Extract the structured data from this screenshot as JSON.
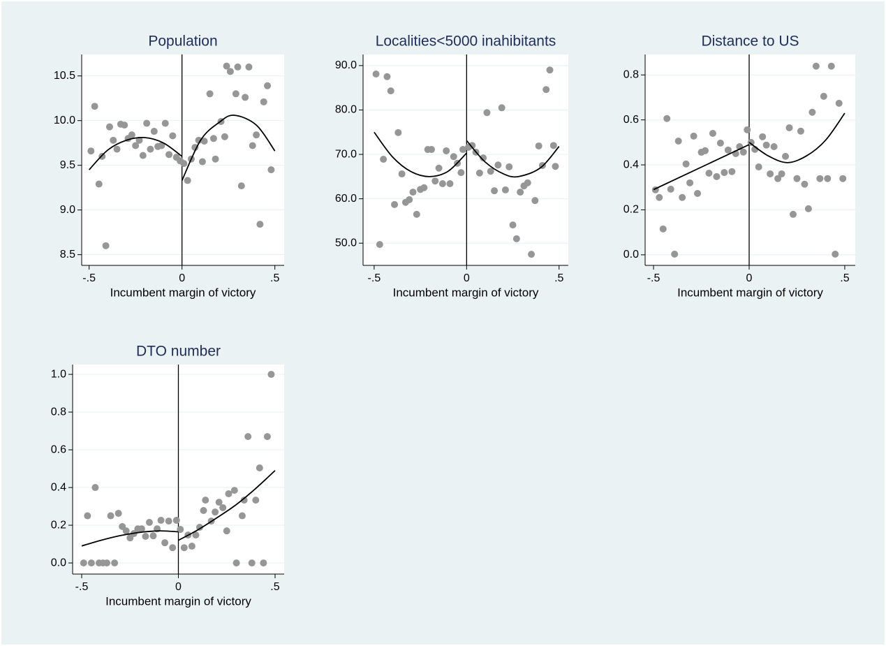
{
  "chart_data": [
    {
      "type": "scatter",
      "title": "Population",
      "xlabel": "Incumbent margin of victory",
      "xlim": [
        -0.54,
        0.55
      ],
      "ylim": [
        8.38,
        10.74
      ],
      "xticks": [
        {
          "value": -0.5,
          "label": "-.5"
        },
        0,
        {
          "value": 0.5,
          "label": ".5"
        }
      ],
      "yticks": [
        8.5,
        {
          "value": 9,
          "label": "9.0"
        },
        9.5,
        {
          "value": 10,
          "label": "10.0"
        },
        10.5
      ],
      "grid": true,
      "xline": 0,
      "points": {
        "color": "#969696",
        "x": [
          -0.49,
          -0.47,
          -0.447,
          -0.43,
          -0.41,
          -0.39,
          -0.37,
          -0.35,
          -0.33,
          -0.31,
          -0.29,
          -0.27,
          -0.25,
          -0.23,
          -0.21,
          -0.19,
          -0.17,
          -0.15,
          -0.13,
          -0.11,
          -0.09,
          -0.07,
          -0.05,
          -0.03,
          -0.01,
          0.01,
          0.03,
          0.05,
          0.07,
          0.09,
          0.11,
          0.12,
          0.15,
          0.17,
          0.18,
          0.21,
          0.23,
          0.24,
          0.26,
          0.29,
          0.3,
          0.32,
          0.34,
          0.36,
          0.38,
          0.4,
          0.42,
          0.44,
          0.46,
          0.48
        ],
        "y": [
          9.66,
          10.16,
          9.29,
          9.6,
          8.6,
          9.93,
          9.78,
          9.68,
          9.96,
          9.95,
          9.8,
          9.84,
          9.72,
          9.78,
          9.61,
          9.97,
          9.68,
          9.88,
          9.71,
          9.72,
          9.97,
          9.62,
          9.83,
          9.59,
          9.55,
          9.52,
          9.33,
          9.57,
          9.7,
          9.78,
          9.54,
          9.77,
          10.3,
          9.8,
          9.57,
          9.99,
          9.82,
          10.61,
          10.55,
          10.3,
          10.6,
          9.27,
          10.26,
          10.6,
          9.72,
          9.84,
          8.84,
          10.21,
          10.39,
          9.45
        ]
      },
      "fits": [
        {
          "color": "#000000",
          "x": [
            -0.5,
            -0.4,
            -0.3,
            -0.2,
            -0.1,
            0
          ],
          "y": [
            9.45,
            9.67,
            9.78,
            9.81,
            9.75,
            9.6
          ]
        },
        {
          "color": "#000000",
          "x": [
            0,
            0.1,
            0.2,
            0.28,
            0.4,
            0.5
          ],
          "y": [
            9.33,
            9.78,
            9.98,
            10.06,
            9.95,
            9.66
          ]
        }
      ]
    },
    {
      "type": "scatter",
      "title": "Localities<5000 inahibitants",
      "xlabel": "Incumbent margin of victory",
      "xlim": [
        -0.56,
        0.55
      ],
      "ylim": [
        45,
        92.5
      ],
      "xticks": [
        {
          "value": -0.5,
          "label": "-.5"
        },
        0,
        {
          "value": 0.5,
          "label": ".5"
        }
      ],
      "yticks": [
        {
          "value": 50,
          "label": "50.0"
        },
        {
          "value": 60,
          "label": "60.0"
        },
        {
          "value": 70,
          "label": "70.0"
        },
        {
          "value": 80,
          "label": "80.0"
        },
        {
          "value": 90,
          "label": "90.0"
        }
      ],
      "grid": true,
      "xline": 0,
      "points": {
        "color": "#969696",
        "x": [
          -0.49,
          -0.47,
          -0.45,
          -0.43,
          -0.41,
          -0.39,
          -0.37,
          -0.35,
          -0.33,
          -0.31,
          -0.29,
          -0.27,
          -0.25,
          -0.23,
          -0.21,
          -0.19,
          -0.17,
          -0.15,
          -0.13,
          -0.11,
          -0.09,
          -0.07,
          -0.05,
          -0.03,
          -0.02,
          0.01,
          0.03,
          0.05,
          0.07,
          0.09,
          0.11,
          0.13,
          0.15,
          0.17,
          0.19,
          0.21,
          0.23,
          0.25,
          0.27,
          0.29,
          0.31,
          0.33,
          0.35,
          0.37,
          0.39,
          0.41,
          0.43,
          0.45,
          0.47,
          0.48
        ],
        "y": [
          88.1,
          49.7,
          68.9,
          87.5,
          84.3,
          58.7,
          74.9,
          65.6,
          59.2,
          59.8,
          61.5,
          56.5,
          62.1,
          62.5,
          71.1,
          71.1,
          64,
          66.9,
          63.4,
          70.8,
          63.4,
          69.5,
          68,
          65.9,
          71.1,
          71.6,
          72,
          70.5,
          65.8,
          69.2,
          79.4,
          66.2,
          61.8,
          67.6,
          80.5,
          62,
          67.2,
          54.1,
          51,
          61.5,
          62.9,
          63.6,
          47.5,
          59.6,
          71.9,
          67.5,
          84.6,
          89,
          72,
          67.3
        ]
      },
      "fits": [
        {
          "color": "#000000",
          "x": [
            -0.5,
            -0.4,
            -0.3,
            -0.2,
            -0.1,
            0
          ],
          "y": [
            75,
            69.4,
            66.1,
            65,
            66.2,
            70.3
          ]
        },
        {
          "color": "#000000",
          "x": [
            0,
            0.1,
            0.2,
            0.28,
            0.4,
            0.5
          ],
          "y": [
            73.1,
            68.3,
            65.6,
            65,
            67,
            71.8
          ]
        }
      ]
    },
    {
      "type": "scatter",
      "title": "Distance to US",
      "xlabel": "Incumbent margin of victory",
      "xlim": [
        -0.544,
        0.555
      ],
      "ylim": [
        -0.047,
        0.891
      ],
      "xticks": [
        {
          "value": -0.5,
          "label": "-.5"
        },
        0,
        {
          "value": 0.5,
          "label": ".5"
        }
      ],
      "yticks": [
        {
          "value": 0,
          "label": "0.0"
        },
        0.2,
        0.4,
        0.6,
        0.8
      ],
      "grid": true,
      "xline": 0,
      "points": {
        "color": "#969696",
        "x": [
          -0.49,
          -0.47,
          -0.45,
          -0.43,
          -0.41,
          -0.39,
          -0.37,
          -0.35,
          -0.33,
          -0.31,
          -0.29,
          -0.27,
          -0.25,
          -0.23,
          -0.21,
          -0.19,
          -0.17,
          -0.15,
          -0.13,
          -0.11,
          -0.09,
          -0.07,
          -0.05,
          -0.03,
          -0.01,
          0.01,
          0.03,
          0.05,
          0.07,
          0.09,
          0.11,
          0.13,
          0.15,
          0.17,
          0.19,
          0.21,
          0.23,
          0.25,
          0.27,
          0.29,
          0.31,
          0.33,
          0.35,
          0.37,
          0.39,
          0.41,
          0.43,
          0.45,
          0.47,
          0.49
        ],
        "y": [
          0.289,
          0.255,
          0.115,
          0.606,
          0.292,
          0.003,
          0.506,
          0.255,
          0.404,
          0.32,
          0.528,
          0.273,
          0.456,
          0.463,
          0.363,
          0.54,
          0.348,
          0.497,
          0.366,
          0.466,
          0.37,
          0.45,
          0.481,
          0.457,
          0.556,
          0.5,
          0.469,
          0.391,
          0.525,
          0.488,
          0.36,
          0.481,
          0.339,
          0.36,
          0.438,
          0.565,
          0.18,
          0.339,
          0.55,
          0.314,
          0.205,
          0.634,
          0.839,
          0.339,
          0.705,
          0.339,
          0.839,
          0.003,
          0.674,
          0.339
        ]
      },
      "fits": [
        {
          "color": "#000000",
          "x": [
            -0.5,
            0
          ],
          "y": [
            0.29,
            0.49
          ]
        },
        {
          "color": "#000000",
          "x": [
            0,
            0.1,
            0.2,
            0.3,
            0.4,
            0.5
          ],
          "y": [
            0.5,
            0.44,
            0.41,
            0.44,
            0.51,
            0.63
          ]
        }
      ]
    },
    {
      "type": "scatter",
      "title": "DTO number",
      "xlabel": "Incumbent margin of victory",
      "xlim": [
        -0.547,
        0.547
      ],
      "ylim": [
        -0.059,
        1.052
      ],
      "xticks": [
        {
          "value": -0.5,
          "label": "-.5"
        },
        0,
        {
          "value": 0.5,
          "label": ".5"
        }
      ],
      "yticks": [
        {
          "value": 0,
          "label": "0.0"
        },
        0.2,
        0.4,
        0.6,
        0.8,
        {
          "value": 1,
          "label": "1.0"
        }
      ],
      "grid": true,
      "xline": 0,
      "points": {
        "color": "#969696",
        "x": [
          -0.49,
          -0.47,
          -0.45,
          -0.43,
          -0.41,
          -0.39,
          -0.37,
          -0.35,
          -0.33,
          -0.31,
          -0.29,
          -0.27,
          -0.25,
          -0.23,
          -0.21,
          -0.19,
          -0.17,
          -0.15,
          -0.13,
          -0.11,
          -0.09,
          -0.07,
          -0.05,
          -0.03,
          -0.01,
          0.01,
          0.03,
          0.05,
          0.07,
          0.09,
          0.11,
          0.13,
          0.14,
          0.17,
          0.19,
          0.21,
          0.23,
          0.25,
          0.26,
          0.29,
          0.3,
          0.33,
          0.34,
          0.36,
          0.38,
          0.4,
          0.42,
          0.44,
          0.46,
          0.48
        ],
        "y": [
          0,
          0.25,
          0,
          0.4,
          0,
          0,
          0,
          0.25,
          0,
          0.263,
          0.193,
          0.17,
          0.133,
          0.156,
          0.181,
          0.181,
          0.141,
          0.215,
          0.144,
          0.181,
          0.226,
          0.107,
          0.222,
          0.081,
          0.226,
          0.178,
          0.081,
          0.148,
          0.089,
          0.148,
          0.189,
          0.278,
          0.333,
          0.222,
          0.27,
          0.322,
          0.293,
          0.17,
          0.367,
          0.385,
          0,
          0.25,
          0.333,
          0.67,
          0,
          0.333,
          0.504,
          0,
          0.67,
          1
        ]
      },
      "fits": [
        {
          "color": "#000000",
          "x": [
            -0.5,
            -0.4,
            -0.3,
            -0.2,
            -0.1,
            0
          ],
          "y": [
            0.09,
            0.12,
            0.145,
            0.162,
            0.17,
            0.165
          ]
        },
        {
          "color": "#000000",
          "x": [
            0,
            0.1,
            0.2,
            0.3,
            0.4,
            0.5
          ],
          "y": [
            0.12,
            0.175,
            0.24,
            0.31,
            0.395,
            0.49
          ]
        }
      ]
    }
  ]
}
